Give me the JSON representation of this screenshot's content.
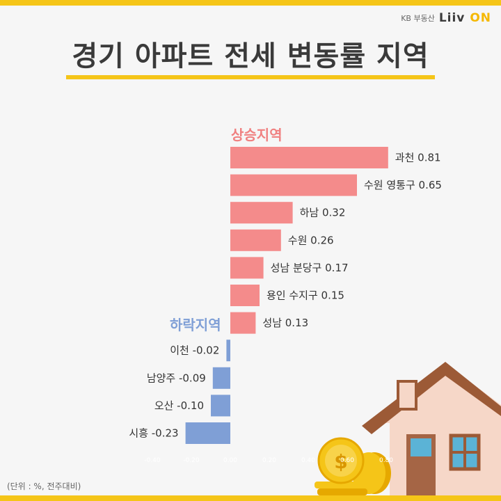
{
  "brand": {
    "kb": "KB 부동산",
    "logo_main": "Liiv",
    "logo_accent": "ON"
  },
  "title": "경기 아파트 전세 변동률 지역",
  "sections": {
    "rise": "상승지역",
    "fall": "하락지역"
  },
  "unit_note": "(단위 : %, 전주대비)",
  "colors": {
    "positive": "#f48b8b",
    "negative": "#7f9fd6",
    "accent": "#f5c518"
  },
  "chart_data": {
    "type": "bar",
    "orientation": "horizontal",
    "categories": [
      "과천",
      "수원 영통구",
      "하남",
      "수원",
      "성남 분당구",
      "용인 수지구",
      "성남",
      "이천",
      "남양주",
      "오산",
      "시흥"
    ],
    "values": [
      0.81,
      0.65,
      0.32,
      0.26,
      0.17,
      0.15,
      0.13,
      -0.02,
      -0.09,
      -0.1,
      -0.23
    ],
    "labels": [
      "과천 0.81",
      "수원 영통구 0.65",
      "하남 0.32",
      "수원 0.26",
      "성남 분당구 0.17",
      "용인 수지구 0.15",
      "성남 0.13",
      "이천 -0.02",
      "남양주 -0.09",
      "오산 -0.10",
      "시흥 -0.23"
    ],
    "xlim": [
      -0.4,
      0.8
    ],
    "ticks": [
      "-0.40",
      "-0.20",
      "0.00",
      "0.20",
      "0.40",
      "0.60",
      "0.80"
    ],
    "grid": false,
    "legend": "none"
  }
}
